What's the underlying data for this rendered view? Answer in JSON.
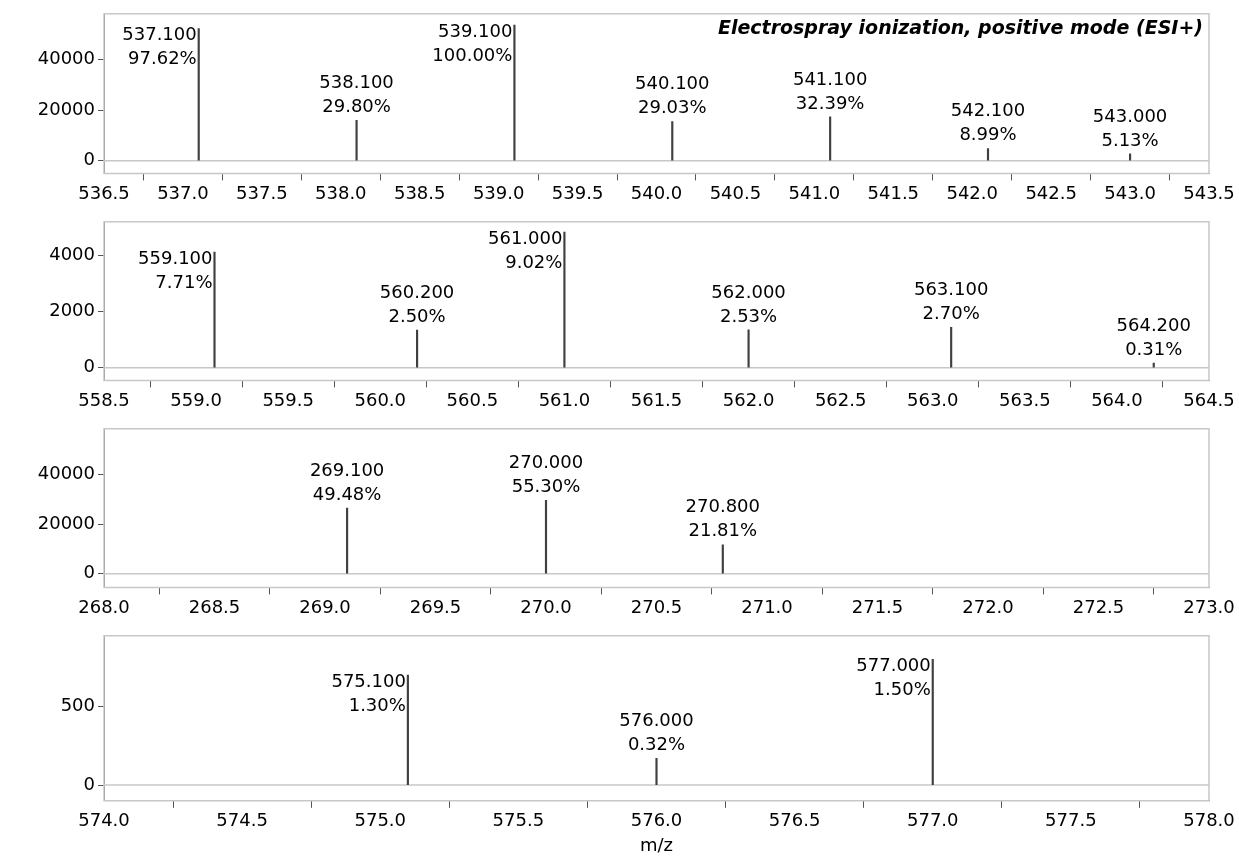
{
  "chart_data": [
    {
      "type": "bar",
      "title": "Electrospray ionization, positive mode (ESI+)",
      "color": "#404040",
      "x": [
        537.1,
        538.1,
        539.1,
        540.1,
        541.1,
        542.1,
        543.0
      ],
      "values": [
        52200,
        15900,
        53500,
        15500,
        17300,
        4800,
        2700
      ],
      "annotations": [
        {
          "text": "537.100\n97.62%",
          "x": 537.1,
          "y": 52200
        },
        {
          "text": "538.100\n29.80%",
          "x": 538.1,
          "y": 15900
        },
        {
          "text": "539.100\n100.00%",
          "x": 539.1,
          "y": 53500
        },
        {
          "text": "540.100\n29.03%",
          "x": 540.1,
          "y": 15500
        },
        {
          "text": "541.100\n32.39%",
          "x": 541.1,
          "y": 17300
        },
        {
          "text": "542.100\n8.99%",
          "x": 542.1,
          "y": 4800
        },
        {
          "text": "543.000\n5.13%",
          "x": 543.0,
          "y": 2700
        }
      ],
      "xlim": [
        536.5,
        543.5
      ],
      "xticks": [
        {
          "value": 536.5,
          "label": "536.5"
        },
        {
          "value": 537,
          "label": "537.0"
        },
        {
          "value": 537.5,
          "label": "537.5"
        },
        {
          "value": 538,
          "label": "538.0"
        },
        {
          "value": 538.5,
          "label": "538.5"
        },
        {
          "value": 539,
          "label": "539.0"
        },
        {
          "value": 539.5,
          "label": "539.5"
        },
        {
          "value": 540,
          "label": "540.0"
        },
        {
          "value": 540.5,
          "label": "540.5"
        },
        {
          "value": 541,
          "label": "541.0"
        },
        {
          "value": 541.5,
          "label": "541.5"
        },
        {
          "value": 542,
          "label": "542.0"
        },
        {
          "value": 542.5,
          "label": "542.5"
        },
        {
          "value": 543,
          "label": "543.0"
        },
        {
          "value": 543.5,
          "label": "543.5"
        }
      ],
      "ylim": [
        -5000,
        58000
      ],
      "yticks": [
        0,
        20000,
        40000
      ],
      "ref_lines": [
        {
          "axis": "y",
          "value": 0,
          "color": "#c8c8c8"
        }
      ]
    },
    {
      "type": "bar",
      "color": "#404040",
      "x": [
        559.1,
        560.2,
        561.0,
        562.0,
        563.1,
        564.2
      ],
      "values": [
        4120,
        1340,
        4830,
        1350,
        1440,
        170
      ],
      "annotations": [
        {
          "text": "559.100\n7.71%",
          "x": 559.1,
          "y": 4120
        },
        {
          "text": "560.200\n2.50%",
          "x": 560.2,
          "y": 1340
        },
        {
          "text": "561.000\n9.02%",
          "x": 561.0,
          "y": 4830
        },
        {
          "text": "562.000\n2.53%",
          "x": 562.0,
          "y": 1350
        },
        {
          "text": "563.100\n2.70%",
          "x": 563.1,
          "y": 1440
        },
        {
          "text": "564.200\n0.31%",
          "x": 564.2,
          "y": 170
        }
      ],
      "xlim": [
        558.5,
        564.5
      ],
      "xticks": [
        {
          "value": 558.5,
          "label": "558.5"
        },
        {
          "value": 559,
          "label": "559.0"
        },
        {
          "value": 559.5,
          "label": "559.5"
        },
        {
          "value": 560,
          "label": "560.0"
        },
        {
          "value": 560.5,
          "label": "560.5"
        },
        {
          "value": 561,
          "label": "561.0"
        },
        {
          "value": 561.5,
          "label": "561.5"
        },
        {
          "value": 562,
          "label": "562.0"
        },
        {
          "value": 562.5,
          "label": "562.5"
        },
        {
          "value": 563,
          "label": "563.0"
        },
        {
          "value": 563.5,
          "label": "563.5"
        },
        {
          "value": 564,
          "label": "564.0"
        },
        {
          "value": 564.5,
          "label": "564.5"
        }
      ],
      "ylim": [
        -450,
        5200
      ],
      "yticks": [
        0,
        2000,
        4000
      ],
      "ref_lines": [
        {
          "axis": "y",
          "value": 0,
          "color": "#c8c8c8"
        }
      ]
    },
    {
      "type": "bar",
      "color": "#404040",
      "x": [
        269.1,
        270.0,
        270.8
      ],
      "values": [
        26500,
        29600,
        11700
      ],
      "annotations": [
        {
          "text": "269.100\n49.48%",
          "x": 269.1,
          "y": 26500
        },
        {
          "text": "270.000\n55.30%",
          "x": 270.0,
          "y": 29600
        },
        {
          "text": "270.800\n21.81%",
          "x": 270.8,
          "y": 11700
        }
      ],
      "xlim": [
        268,
        273
      ],
      "xticks": [
        {
          "value": 268,
          "label": "268.0"
        },
        {
          "value": 268.5,
          "label": "268.5"
        },
        {
          "value": 269,
          "label": "269.0"
        },
        {
          "value": 269.5,
          "label": "269.5"
        },
        {
          "value": 270,
          "label": "270.0"
        },
        {
          "value": 270.5,
          "label": "270.5"
        },
        {
          "value": 271,
          "label": "271.0"
        },
        {
          "value": 271.5,
          "label": "271.5"
        },
        {
          "value": 272,
          "label": "272.0"
        },
        {
          "value": 272.5,
          "label": "272.5"
        },
        {
          "value": 273,
          "label": "273.0"
        }
      ],
      "ylim": [
        -5500,
        58400
      ],
      "yticks": [
        0,
        20000,
        40000
      ],
      "ref_lines": [
        {
          "axis": "y",
          "value": 0,
          "color": "#c8c8c8"
        }
      ]
    },
    {
      "type": "bar",
      "xlabel": "m/z",
      "color": "#404040",
      "x": [
        575.1,
        576.0,
        577.0
      ],
      "values": [
        700,
        170,
        800
      ],
      "annotations": [
        {
          "text": "575.100\n1.30%",
          "x": 575.1,
          "y": 700
        },
        {
          "text": "576.000\n0.32%",
          "x": 576.0,
          "y": 170
        },
        {
          "text": "577.000\n1.50%",
          "x": 577.0,
          "y": 800
        }
      ],
      "xlim": [
        574,
        578
      ],
      "xticks": [
        {
          "value": 574,
          "label": "574.0"
        },
        {
          "value": 574.5,
          "label": "574.5"
        },
        {
          "value": 575,
          "label": "575.0"
        },
        {
          "value": 575.5,
          "label": "575.5"
        },
        {
          "value": 576,
          "label": "576.0"
        },
        {
          "value": 576.5,
          "label": "576.5"
        },
        {
          "value": 577,
          "label": "577.0"
        },
        {
          "value": 577.5,
          "label": "577.5"
        },
        {
          "value": 578,
          "label": "578.0"
        }
      ],
      "ylim": [
        -100,
        950
      ],
      "yticks": [
        0,
        500
      ],
      "ref_lines": [
        {
          "axis": "y",
          "value": 0,
          "color": "#c8c8c8"
        }
      ]
    }
  ]
}
